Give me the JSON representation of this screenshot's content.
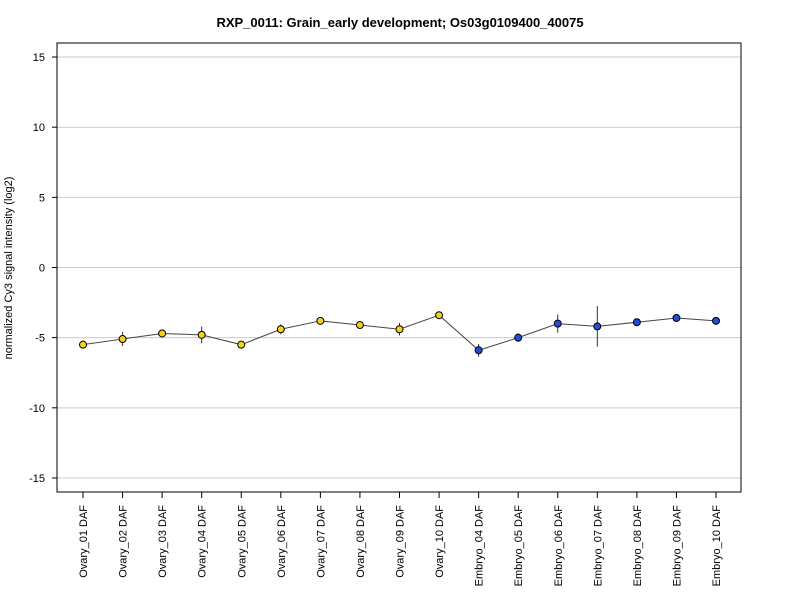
{
  "chart_data": {
    "type": "line",
    "title": "RXP_0011: Grain_early development; Os03g0109400_40075",
    "ylabel": "normalized Cy3 signal intensity (log2)",
    "xlabel": "",
    "ylim": [
      -16,
      16
    ],
    "yticks": [
      -15,
      -10,
      -5,
      0,
      5,
      10,
      15
    ],
    "grid": "horizontal",
    "categories": [
      "Ovary_01 DAF",
      "Ovary_02 DAF",
      "Ovary_03 DAF",
      "Ovary_04 DAF",
      "Ovary_05 DAF",
      "Ovary_06 DAF",
      "Ovary_07 DAF",
      "Ovary_08 DAF",
      "Ovary_09 DAF",
      "Ovary_10 DAF",
      "Embryo_04 DAF",
      "Embryo_05 DAF",
      "Embryo_06 DAF",
      "Embryo_07 DAF",
      "Embryo_08 DAF",
      "Embryo_09 DAF",
      "Embryo_10 DAF"
    ],
    "values": [
      -5.5,
      -5.1,
      -4.7,
      -4.8,
      -5.5,
      -4.4,
      -3.8,
      -4.1,
      -4.4,
      -3.4,
      -5.9,
      -5.0,
      -4.0,
      -4.2,
      -3.9,
      -3.6,
      -3.8
    ],
    "errors": [
      0.25,
      0.5,
      0.15,
      0.6,
      0.25,
      0.35,
      0.2,
      0.25,
      0.45,
      0.2,
      0.45,
      0.3,
      0.65,
      1.45,
      0.15,
      0.15,
      0.15
    ],
    "point_colors": [
      "#f2d21b",
      "#f2d21b",
      "#f2d21b",
      "#f2d21b",
      "#f2d21b",
      "#f2d21b",
      "#f2d21b",
      "#f2d21b",
      "#f2d21b",
      "#f2d21b",
      "#1f4fd8",
      "#1f4fd8",
      "#1f4fd8",
      "#1f4fd8",
      "#1f4fd8",
      "#1f4fd8",
      "#1f4fd8"
    ],
    "colors": {
      "ovary": "#f2d21b",
      "embryo": "#1f4fd8",
      "line": "#444444",
      "grid": "#cccccc"
    }
  }
}
